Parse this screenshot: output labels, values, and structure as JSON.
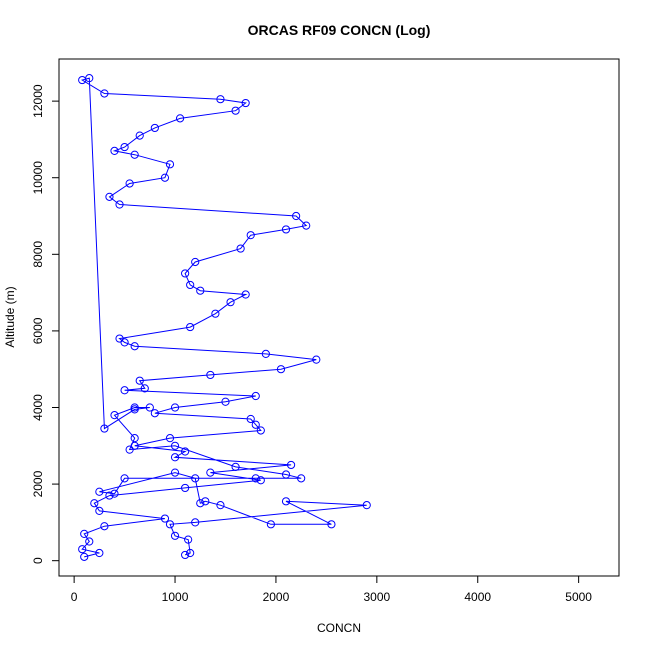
{
  "chart_data": {
    "type": "line",
    "title": "ORCAS RF09 CONCN (Log)",
    "xlabel": "CONCN",
    "ylabel": "Altitude (m)",
    "xlim": [
      -150,
      5400
    ],
    "ylim": [
      -400,
      13100
    ],
    "x_ticks": [
      0,
      1000,
      2000,
      3000,
      4000,
      5000
    ],
    "y_ticks": [
      0,
      2000,
      4000,
      6000,
      8000,
      10000,
      12000
    ],
    "line_color": "#0000ff",
    "marker": "open-circle",
    "grid": false,
    "legend": "none",
    "series": [
      {
        "x": [
          1100,
          1150,
          1130,
          1000,
          950,
          1200,
          2900,
          2100,
          2550,
          1950,
          1450,
          1300,
          1250,
          1200,
          1000,
          250,
          400,
          500,
          1800,
          2250,
          2100,
          1600,
          1000,
          550,
          600,
          400,
          600,
          750,
          600,
          300,
          150,
          80,
          300,
          1450,
          1700,
          1600,
          1050,
          800,
          650,
          500,
          400,
          600,
          950,
          900,
          550,
          350,
          450,
          2200,
          2300,
          2100,
          1750,
          1650,
          1200,
          1100,
          1150,
          1250,
          1700,
          1550,
          1400,
          1150,
          450,
          500,
          600,
          1900,
          2400,
          2050,
          1350,
          650,
          700,
          500,
          1800,
          1500,
          1000,
          800,
          1750,
          1800,
          1850,
          950,
          600,
          1100,
          1000,
          2150,
          1350,
          1850,
          1100,
          350,
          200,
          250,
          900,
          300,
          100,
          150,
          80,
          250,
          100
        ],
        "y": [
          150,
          200,
          550,
          650,
          950,
          1000,
          1450,
          1550,
          950,
          950,
          1450,
          1550,
          1500,
          2150,
          2300,
          1800,
          1750,
          2150,
          2150,
          2150,
          2250,
          2450,
          3000,
          2900,
          3200,
          3800,
          4000,
          4000,
          3950,
          3450,
          12600,
          12550,
          12200,
          12050,
          11950,
          11750,
          11550,
          11300,
          11100,
          10800,
          10700,
          10600,
          10350,
          10000,
          9850,
          9500,
          9300,
          9000,
          8750,
          8650,
          8500,
          8150,
          7800,
          7500,
          7200,
          7050,
          6950,
          6750,
          6450,
          6100,
          5800,
          5700,
          5600,
          5400,
          5250,
          5000,
          4850,
          4700,
          4500,
          4450,
          4300,
          4150,
          4000,
          3850,
          3700,
          3550,
          3400,
          3200,
          3000,
          2850,
          2700,
          2500,
          2300,
          2100,
          1900,
          1700,
          1500,
          1300,
          1100,
          900,
          700,
          500,
          300,
          200,
          100
        ]
      }
    ]
  }
}
